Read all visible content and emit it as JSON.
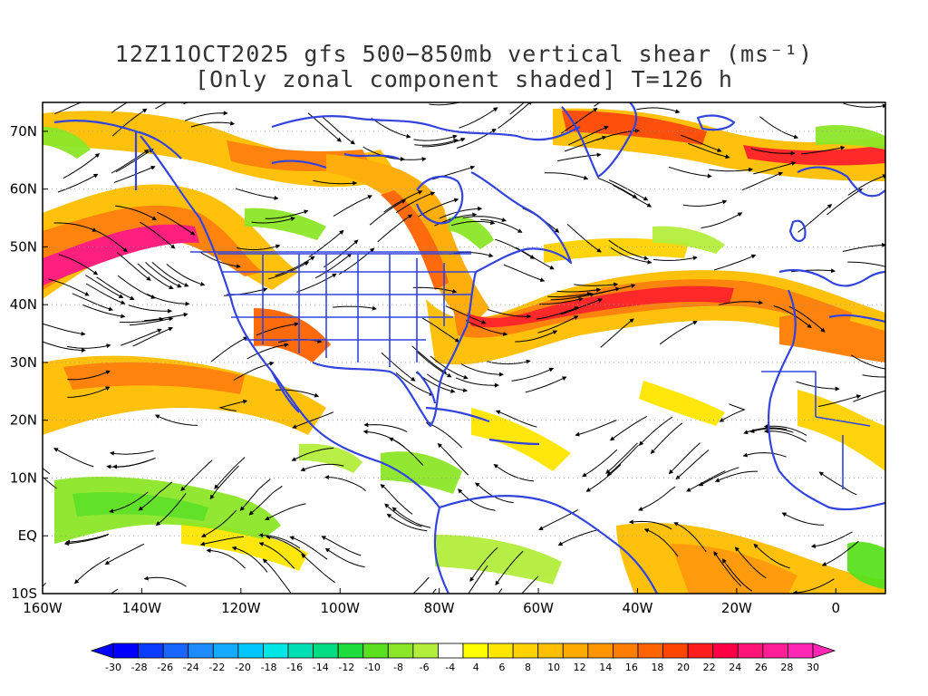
{
  "title": {
    "line1": "12Z11OCT2025 gfs 500−850mb vertical shear (ms⁻¹)",
    "line2": "[Only zonal component shaded] T=126 h"
  },
  "map": {
    "lon_range": [
      -160,
      10
    ],
    "lat_range": [
      -10,
      75
    ],
    "lat_ticks": [
      "70N",
      "60N",
      "50N",
      "40N",
      "30N",
      "20N",
      "10N",
      "EQ",
      "10S"
    ],
    "lon_ticks": [
      "160W",
      "140W",
      "120W",
      "100W",
      "80W",
      "60W",
      "40W",
      "20W",
      "0"
    ],
    "coast_color": "#3344dd"
  },
  "colorbar": {
    "levels": [
      "-30",
      "-28",
      "-26",
      "-24",
      "-22",
      "-20",
      "-18",
      "-16",
      "-14",
      "-12",
      "-10",
      "-8",
      "-6",
      "-4",
      "4",
      "6",
      "8",
      "10",
      "12",
      "14",
      "16",
      "18",
      "20",
      "22",
      "24",
      "26",
      "28",
      "30"
    ],
    "colors": [
      "#0000ff",
      "#0a3cff",
      "#1a64ff",
      "#1e8cff",
      "#14aaff",
      "#00c8ff",
      "#00e6e6",
      "#00e0b4",
      "#00dc82",
      "#1edc3c",
      "#5ae01e",
      "#8ce628",
      "#b4ee3c",
      "#ffffff",
      "#ffff00",
      "#ffe600",
      "#ffd200",
      "#ffbe00",
      "#ffaa00",
      "#ff9600",
      "#ff7d00",
      "#ff6400",
      "#ff4600",
      "#ff1e1e",
      "#ff0046",
      "#ff1478",
      "#ff1e96",
      "#ff28b4"
    ]
  }
}
